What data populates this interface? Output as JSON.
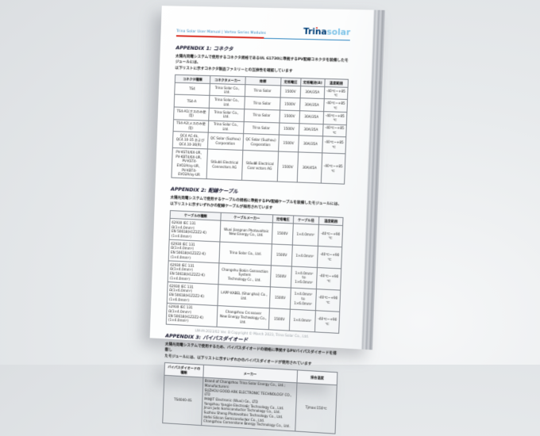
{
  "colors": {
    "accent_red": "#d93025",
    "brand_dark_blue": "#003f78",
    "brand_light_blue": "#7fc4e8",
    "header_rule_blue": "#2e86c1"
  },
  "document": {
    "header": {
      "manual_title": "Trina Solar User Manual | Vertex Series Modules",
      "logo_primary": "Trina",
      "logo_secondary": "solar"
    },
    "appendices": [
      {
        "heading": "APPENDIX 1: コネクタ",
        "body": "太陽光発電システムで使用するコネクタ規格であるUL 61730に準拠するPV配線コネクタを装備したモジュールには、\n以下リストに示すコネクタ製品ファミリーとの互換性を確認しています",
        "table": {
          "headers": [
            "コネクタ種類",
            "コネクタメーカー",
            "商標",
            "定格電圧",
            "定格電流(A)",
            "温度範囲"
          ],
          "rows": [
            [
              "TS4",
              "Trina Solar Co., Ltd.",
              "Trina Solar",
              "1500V",
              "30A/35A",
              "-40℃~+85℃"
            ],
            [
              "TS4-A",
              "Trina Solar Co., Ltd.",
              "Trina Solar",
              "1500V",
              "30A/35A",
              "-40℃~+85℃"
            ],
            [
              "TS4-A1(オスのみ使用)",
              "Trina Solar Co., Ltd.",
              "Trina Solar",
              "1500V",
              "30A/35A",
              "-40℃~+85℃"
            ],
            [
              "TS4-A2(メスのみ使用)",
              "Trina Solar Co., Ltd.",
              "Trina Solar",
              "1500V",
              "30A/35A",
              "-40℃~+85℃"
            ],
            [
              "QC4 AC-4k、\nQC4.10-35 および\nQC4.10-36(R)",
              "QC Solar (Suzhou)\nCorporation",
              "QC Solar (Suzhou)\nCorporation",
              "1500V",
              "30A/35A",
              "-40℃~+85℃"
            ],
            [
              "PV-KST4/6X-UR、\nPV-KBT4/6X-UR、\nPV-KST4-EVO2A/xy-UR、\nPV-KBT4-EVO2A/xy-UR",
              "Stäubli Electrical\nConnectors AG",
              "Stäubli Electrical\nConnectors AG",
              "1500V",
              "30A/45A",
              "-40℃~+85℃"
            ]
          ]
        }
      },
      {
        "heading": "APPENDIX 2: 配線ケーブル",
        "body": "太陽光発電システムで使用するケーブルの規格に準拠するPV配線ケーブルを装備したモジュールには、\n以下リストに示すいずれかの配線ケーブルが採用されています",
        "table": {
          "headers": [
            "ケーブルの種類",
            "ケーブルメーカー",
            "定格電圧",
            "ケーブル径",
            "温度範囲"
          ],
          "rows": [
            [
              "62930 IEC 131 Ω(1×4.0mm²)\nEN 50618(H1Z2Z2-K)(1×4.0mm²)",
              "Wuxi Jiangnan Photovoltaic New Energy Co., Ltd.",
              "1500V",
              "1×4.0mm²",
              "-40℃~+90℃"
            ],
            [
              "62930 IEC 131 Ω(1×4.0mm²)\nEN 50618(H1Z2Z2-K)(1×4.0mm²)",
              "Trina Solar Co., Ltd.",
              "1500V",
              "1×4.0mm²",
              "-40℃~+90℃"
            ],
            [
              "62930 IEC 131 Ω(1×4.0mm²)\nEN 50618(H1Z2Z2-K)(1×4.0mm²)",
              "Changshu Bokin Connection System\nTechnology Co., Ltd.",
              "1500V",
              "1×4.0mm² to\n1×6.0mm²",
              "-40℃~+90℃"
            ],
            [
              "62930 IEC 131 Ω(1×6.0mm²)\nEN 50618(H1Z2Z2-K)(1×6.0mm²)",
              "LAPP KABEL (Shanghai) Co., Ltd.",
              "1500V",
              "1×4.0mm² to\n1×6.0mm²",
              "-40℃~+90℃"
            ],
            [
              "62930 IEC 131 Ω(1×4.0mm²)\nEN 50618(H1Z2Z2-K)(1×4.0mm²)",
              "Changzhou Crossover\nNew Energy Technology Co., Ltd.",
              "1500V",
              "1×4.0mm²",
              "-40℃~+90℃"
            ]
          ]
        }
      },
      {
        "heading": "APPENDIX 3: バイパスダイオード",
        "body": "太陽光発電システムで使用するため、バイパスダイオードの規格に準拠するPVバイパスダイオードを搭載し\nたモジュールには、以下リストに示すいずれかのバイパスダイオードが使用されています",
        "table": {
          "headers": [
            "バイパスダイオードの種類",
            "メーカー",
            "接合温度"
          ],
          "rows": [
            [
              "TS4040-4S",
              "Brand of Changzhou Trina Solar Energy Co., Ltd.; Manufacturers:\nSUZHOU GOOD-ARK ELECTRONIC TECHNOLOGY CO., LTD\nPANJIT Electronic (Wuxi) Co., LTD\nYangzhou Yangjie Electronic Technology Co., Ltd.\nJinan Jude Semiconductor Technology Co., Ltd.\nSuzhou Sheng Photovoltaic Technology Co., Ltd.\nHefei Silicon Semiconductor Co., Ltd.\nChangzhou Cornerstone Energy Technology Co., Ltd.",
              "Tjmax:150℃"
            ]
          ]
        }
      }
    ],
    "footer": "UM-M-2023/02 Ver. B Copyright © March 2023, Trina Solar Co., Ltd."
  }
}
